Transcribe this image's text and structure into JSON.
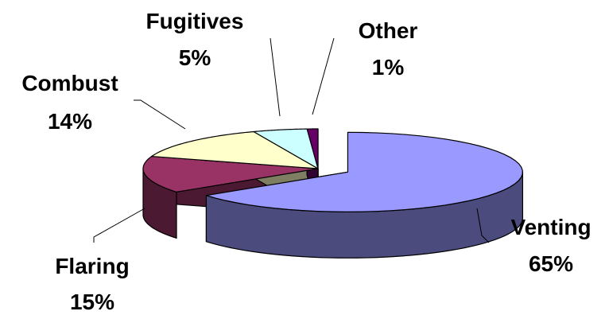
{
  "chart_data": {
    "type": "pie",
    "style": "3d-exploded",
    "legend": "none",
    "slices": [
      {
        "category": "Venting",
        "value": 65,
        "label_name": "Venting",
        "label_pct": "65%",
        "color": "#9999ff",
        "side_color": "#4b4b7e"
      },
      {
        "category": "Flaring",
        "value": 15,
        "label_name": "Flaring",
        "label_pct": "15%",
        "color": "#993366",
        "side_color": "#4b1931"
      },
      {
        "category": "Combust",
        "value": 14,
        "label_name": "Combust",
        "label_pct": "14%",
        "color": "#ffffcc",
        "side_color": "#7e7e63"
      },
      {
        "category": "Fugitives",
        "value": 5,
        "label_name": "Fugitives",
        "label_pct": "5%",
        "color": "#ccffff",
        "side_color": "#637e7e"
      },
      {
        "category": "Other",
        "value": 1,
        "label_name": "Other",
        "label_pct": "1%",
        "color": "#660066",
        "side_color": "#330033"
      }
    ]
  }
}
